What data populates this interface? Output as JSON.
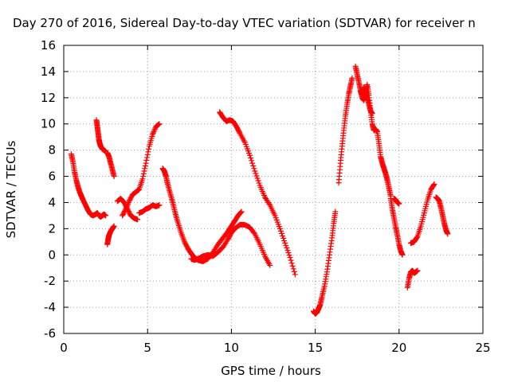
{
  "chart_data": {
    "type": "scatter",
    "title": "Day 270 of 2016, Sidereal Day-to-day VTEC variation (SDTVAR) for receiver n",
    "xlabel": "GPS time / hours",
    "ylabel": "SDTVAR / TECUs",
    "xlim": [
      0,
      25
    ],
    "ylim": [
      -6,
      16
    ],
    "x_ticks": [
      0,
      5,
      10,
      15,
      20,
      25
    ],
    "y_ticks": [
      -6,
      -4,
      -2,
      0,
      2,
      4,
      6,
      8,
      10,
      12,
      14,
      16
    ],
    "grid": true,
    "marker": "+",
    "series_color": "#ff0000",
    "series": [
      {
        "x": [
          0.45,
          0.55,
          0.65,
          0.75,
          0.85,
          0.95,
          1.05,
          1.15,
          1.3,
          1.45,
          1.6,
          1.75,
          1.9,
          2.0,
          2.1,
          2.2,
          2.3,
          2.4,
          2.5
        ],
        "y": [
          7.7,
          7.1,
          6.3,
          5.7,
          5.2,
          4.8,
          4.5,
          4.2,
          3.8,
          3.4,
          3.1,
          3.0,
          3.1,
          3.2,
          3.0,
          2.9,
          3.0,
          3.1,
          3.0
        ]
      },
      {
        "x": [
          1.95,
          2.0,
          2.05,
          2.1,
          2.15,
          2.2,
          2.3,
          2.4,
          2.5
        ],
        "y": [
          10.3,
          9.8,
          9.3,
          8.8,
          8.5,
          8.3,
          8.1,
          8.0,
          7.9
        ]
      },
      {
        "x": [
          2.6,
          2.7,
          2.8,
          2.9,
          3.0
        ],
        "y": [
          7.8,
          7.5,
          7.0,
          6.5,
          6.0
        ]
      },
      {
        "x": [
          2.6,
          2.65,
          2.7,
          2.8,
          2.9,
          3.0
        ],
        "y": [
          0.8,
          1.2,
          1.5,
          1.8,
          2.0,
          2.2
        ]
      },
      {
        "x": [
          3.2,
          3.4,
          3.6,
          3.8,
          4.0,
          4.2,
          4.4
        ],
        "y": [
          4.1,
          4.3,
          4.0,
          3.5,
          3.0,
          2.8,
          2.7
        ]
      },
      {
        "x": [
          3.5,
          3.7,
          3.9,
          4.1,
          4.3,
          4.5,
          4.7,
          4.9,
          5.1,
          5.3,
          5.5,
          5.7
        ],
        "y": [
          3.0,
          3.5,
          4.1,
          4.6,
          4.8,
          5.0,
          5.8,
          7.0,
          8.3,
          9.2,
          9.8,
          10.0
        ]
      },
      {
        "x": [
          4.5,
          4.7,
          4.9,
          5.1,
          5.3,
          5.5,
          5.7
        ],
        "y": [
          3.2,
          3.3,
          3.5,
          3.6,
          3.8,
          3.7,
          3.8
        ]
      },
      {
        "x": [
          5.9,
          6.0,
          6.1,
          6.2,
          6.35,
          6.5,
          6.65,
          6.8,
          7.0,
          7.2,
          7.4,
          7.6,
          7.8,
          8.0,
          8.3,
          8.6,
          8.9,
          9.2,
          9.5,
          9.8,
          10.0,
          10.2,
          10.4,
          10.6
        ],
        "y": [
          6.6,
          6.4,
          6.0,
          5.4,
          4.7,
          4.0,
          3.2,
          2.5,
          1.7,
          1.0,
          0.5,
          0.1,
          -0.2,
          -0.4,
          -0.5,
          -0.3,
          0.2,
          0.8,
          1.3,
          1.8,
          2.2,
          2.6,
          3.0,
          3.3
        ]
      },
      {
        "x": [
          7.6,
          7.8,
          8.0,
          8.3,
          8.6,
          8.9,
          9.2,
          9.5,
          9.8,
          10.0,
          10.2,
          10.5,
          10.8,
          11.1,
          11.4,
          11.7,
          12.0,
          12.3
        ],
        "y": [
          -0.3,
          -0.4,
          -0.3,
          -0.1,
          0.0,
          -0.1,
          0.2,
          0.6,
          1.2,
          1.7,
          2.0,
          2.3,
          2.3,
          2.1,
          1.6,
          0.8,
          -0.1,
          -0.8
        ]
      },
      {
        "x": [
          9.3,
          9.5,
          9.7,
          9.9,
          10.1,
          10.3,
          10.5,
          10.8,
          11.1,
          11.4,
          11.7,
          12.0,
          12.3,
          12.6,
          12.9,
          13.2,
          13.5,
          13.8
        ],
        "y": [
          10.9,
          10.5,
          10.2,
          10.3,
          10.2,
          9.8,
          9.3,
          8.6,
          7.6,
          6.4,
          5.3,
          4.4,
          3.8,
          3.0,
          2.0,
          0.9,
          -0.2,
          -1.5
        ]
      },
      {
        "x": [
          14.9,
          15.0,
          15.1,
          15.2,
          15.3,
          15.4,
          15.55,
          15.7,
          15.85,
          16.0,
          16.1,
          16.2
        ],
        "y": [
          -4.3,
          -4.5,
          -4.4,
          -4.1,
          -3.8,
          -3.2,
          -2.4,
          -1.3,
          0.0,
          1.3,
          2.4,
          3.3
        ]
      },
      {
        "x": [
          16.4,
          16.5,
          16.6,
          16.7,
          16.8,
          16.9,
          17.0,
          17.1,
          17.2
        ],
        "y": [
          5.5,
          7.0,
          8.3,
          9.5,
          10.6,
          11.5,
          12.3,
          12.9,
          13.5
        ]
      },
      {
        "x": [
          17.4,
          17.5,
          17.6,
          17.7,
          17.8,
          17.9,
          18.0,
          18.1,
          18.2,
          18.3,
          18.4
        ],
        "y": [
          14.4,
          13.8,
          13.2,
          12.6,
          12.2,
          12.8,
          12.3,
          12.0,
          11.5,
          11.0,
          10.8
        ]
      },
      {
        "x": [
          17.7,
          17.8,
          17.9,
          18.0,
          18.1,
          18.2,
          18.3,
          18.4,
          18.5,
          18.6,
          18.7,
          18.8,
          18.9,
          19.0,
          19.1,
          19.2,
          19.3,
          19.4,
          19.5
        ],
        "y": [
          12.5,
          12.0,
          11.8,
          12.4,
          13.0,
          12.2,
          11.0,
          10.0,
          9.5,
          9.6,
          9.4,
          8.5,
          7.5,
          7.0,
          6.6,
          6.2,
          5.7,
          5.1,
          4.5
        ]
      },
      {
        "x": [
          19.5,
          19.6,
          19.7,
          19.8,
          19.9,
          20.0,
          20.1,
          20.2
        ],
        "y": [
          4.3,
          3.5,
          2.8,
          2.1,
          1.5,
          0.8,
          0.3,
          0.0
        ]
      },
      {
        "x": [
          19.7,
          19.8,
          19.9,
          20.0
        ],
        "y": [
          4.3,
          4.2,
          4.0,
          3.9
        ]
      },
      {
        "x": [
          20.5,
          20.6,
          20.7,
          20.8,
          20.9,
          21.0,
          21.1
        ],
        "y": [
          -2.5,
          -1.8,
          -1.3,
          -1.2,
          -1.4,
          -1.3,
          -1.2
        ]
      },
      {
        "x": [
          20.7,
          20.9,
          21.1,
          21.3,
          21.5,
          21.7,
          21.9,
          22.1
        ],
        "y": [
          0.9,
          1.0,
          1.4,
          2.2,
          3.2,
          4.2,
          5.0,
          5.4
        ]
      },
      {
        "x": [
          22.2,
          22.3,
          22.4,
          22.5,
          22.6,
          22.7,
          22.8,
          22.9
        ],
        "y": [
          4.4,
          4.3,
          4.1,
          3.6,
          3.0,
          2.4,
          1.9,
          1.6
        ]
      }
    ]
  }
}
